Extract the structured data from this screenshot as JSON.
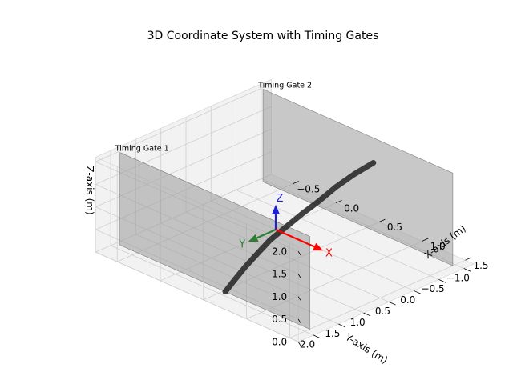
{
  "chart_data": {
    "type": "3d-line",
    "title": "3D Coordinate System with Timing Gates",
    "xlabel": "X-axis (m)",
    "ylabel": "Y-axis (m)",
    "zlabel": "Z-axis (m)",
    "x_ticks": [
      "−0.5",
      "0.0",
      "0.5",
      "1.0",
      "1.5"
    ],
    "y_ticks": [
      "−1.0",
      "−0.5",
      "0.0",
      "0.5",
      "1.0",
      "1.5",
      "2.0"
    ],
    "z_ticks": [
      "0.0",
      "0.5",
      "1.0",
      "1.5",
      "2.0"
    ],
    "x_tick_values": [
      -0.5,
      0.0,
      0.5,
      1.0,
      1.5
    ],
    "y_tick_values": [
      -1.0,
      -0.5,
      0.0,
      0.5,
      1.0,
      1.5,
      2.0
    ],
    "z_tick_values": [
      0.0,
      0.5,
      1.0,
      1.5,
      2.0
    ],
    "xlim": [
      -0.75,
      1.6
    ],
    "ylim": [
      -1.2,
      2.3
    ],
    "zlim": [
      0.0,
      2.1
    ],
    "grid": true,
    "coordinate_frame": {
      "origin": [
        0,
        0,
        0
      ],
      "length": 0.55,
      "labels": [
        "X",
        "Y",
        "Z"
      ],
      "colors": [
        "#ff0000",
        "#2e7d32",
        "#1f1fd6"
      ]
    },
    "gates": [
      {
        "label": "Timing Gate 1",
        "x": [
          -0.7,
          1.5
        ],
        "y": 1.9,
        "z": [
          0.0,
          2.05
        ]
      },
      {
        "label": "Timing Gate 2",
        "x": [
          -0.7,
          1.5
        ],
        "y": -0.95,
        "z": [
          0.0,
          2.05
        ]
      }
    ],
    "trajectory": {
      "x": [
        0.55,
        0.5,
        0.47,
        0.44,
        0.42,
        0.41,
        0.4,
        0.42,
        0.46,
        0.51,
        0.55
      ],
      "y": [
        -1.0,
        -0.7,
        -0.4,
        -0.1,
        0.2,
        0.5,
        0.8,
        1.1,
        1.4,
        1.7,
        1.95
      ],
      "z": [
        1.45,
        1.3,
        1.15,
        0.95,
        0.8,
        0.65,
        0.5,
        0.35,
        0.25,
        0.15,
        0.05
      ],
      "color": "#2b2b2b"
    },
    "colors": {
      "pane": "#f2f2f2",
      "grid": "#cfcfcf",
      "gate_fill": "#9a9a9a"
    }
  }
}
